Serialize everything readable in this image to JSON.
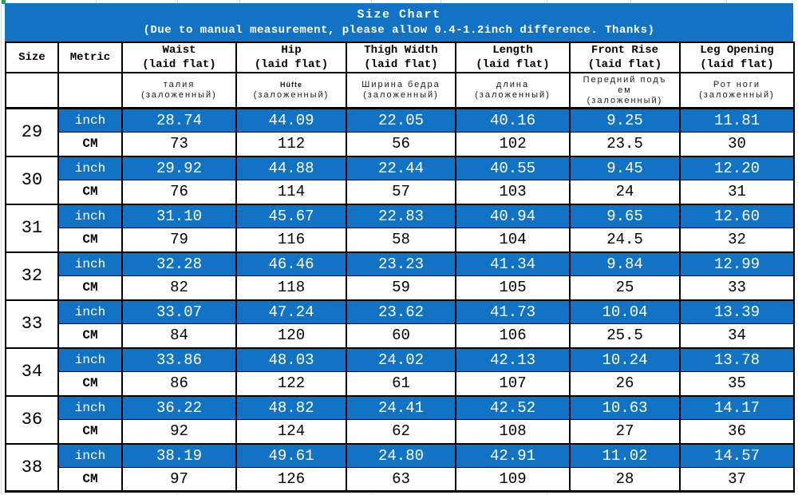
{
  "chart_data": {
    "type": "table",
    "title": "Size Chart",
    "subtitle": "(Due to manual measurement, please allow 0.4-1.2inch difference. Thanks)",
    "size_header": "Size",
    "metric_header": "Metric",
    "measure_columns": [
      {
        "label": "Waist",
        "sub": "(laid flat)",
        "translation": "талия",
        "translation_sub": "(заложенный)"
      },
      {
        "label": "Hip",
        "sub": "(laid flat)",
        "translation": "Hüfte",
        "translation_sub": "(заложенный)"
      },
      {
        "label": "Thigh Width",
        "sub": "(laid flat)",
        "translation": "Ширина бедра",
        "translation_sub": "(заложенный)"
      },
      {
        "label": "Length",
        "sub": "(laid flat)",
        "translation": "длина",
        "translation_sub": "(заложенный)"
      },
      {
        "label": "Front Rise",
        "sub": "(laid flat)",
        "translation": "Передний подъем",
        "translation_sub": "(заложенный)"
      },
      {
        "label": "Leg Opening",
        "sub": "(laid flat)",
        "translation": "Рот ноги",
        "translation_sub": "(заложенный)"
      }
    ],
    "unit_inch": "inch",
    "unit_cm": "CM",
    "rows": [
      {
        "size": "29",
        "inch": [
          "28.74",
          "44.09",
          "22.05",
          "40.16",
          "9.25",
          "11.81"
        ],
        "cm": [
          "73",
          "112",
          "56",
          "102",
          "23.5",
          "30"
        ]
      },
      {
        "size": "30",
        "inch": [
          "29.92",
          "44.88",
          "22.44",
          "40.55",
          "9.45",
          "12.20"
        ],
        "cm": [
          "76",
          "114",
          "57",
          "103",
          "24",
          "31"
        ]
      },
      {
        "size": "31",
        "inch": [
          "31.10",
          "45.67",
          "22.83",
          "40.94",
          "9.65",
          "12.60"
        ],
        "cm": [
          "79",
          "116",
          "58",
          "104",
          "24.5",
          "32"
        ]
      },
      {
        "size": "32",
        "inch": [
          "32.28",
          "46.46",
          "23.23",
          "41.34",
          "9.84",
          "12.99"
        ],
        "cm": [
          "82",
          "118",
          "59",
          "105",
          "25",
          "33"
        ]
      },
      {
        "size": "33",
        "inch": [
          "33.07",
          "47.24",
          "23.62",
          "41.73",
          "10.04",
          "13.39"
        ],
        "cm": [
          "84",
          "120",
          "60",
          "106",
          "25.5",
          "34"
        ]
      },
      {
        "size": "34",
        "inch": [
          "33.86",
          "48.03",
          "24.02",
          "42.13",
          "10.24",
          "13.78"
        ],
        "cm": [
          "86",
          "122",
          "61",
          "107",
          "26",
          "35"
        ]
      },
      {
        "size": "36",
        "inch": [
          "36.22",
          "48.82",
          "24.41",
          "42.52",
          "10.63",
          "14.17"
        ],
        "cm": [
          "92",
          "124",
          "62",
          "108",
          "27",
          "36"
        ]
      },
      {
        "size": "38",
        "inch": [
          "38.19",
          "49.61",
          "24.80",
          "42.91",
          "11.02",
          "14.57"
        ],
        "cm": [
          "97",
          "126",
          "63",
          "109",
          "28",
          "37"
        ]
      }
    ]
  },
  "colors": {
    "header_blue": "#1272c4",
    "inch_row_blue": "#1272c4",
    "border_black": "#000000",
    "title_text": "#ffffff",
    "inch_value_text": "#ffffff",
    "cm_value_text": "#000000",
    "translation_text": "#1a1a1a",
    "gridline_gray": "#d8d8d8",
    "corner_marker_green": "#21a366"
  }
}
